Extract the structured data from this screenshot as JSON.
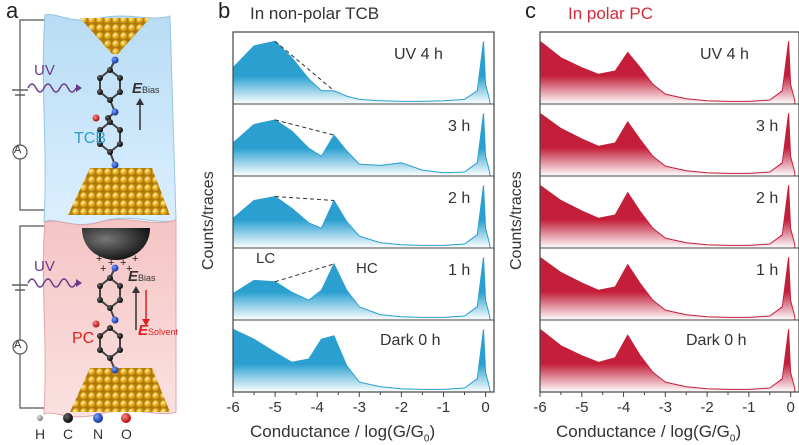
{
  "panels": {
    "a": {
      "letter": "a",
      "top": {
        "light": "UV",
        "solvent": "TCB",
        "field": "E",
        "field_sub": "Bias",
        "meter": "A"
      },
      "bottom": {
        "light": "UV",
        "solvent": "PC",
        "field": "E",
        "field_sub": "Bias",
        "field2": "E",
        "field2_sub": "Solvent",
        "meter": "A"
      },
      "legend": [
        "H",
        "C",
        "N",
        "O"
      ]
    },
    "b": {
      "letter": "b",
      "title": "In non-polar TCB",
      "rows": [
        "UV  4 h",
        "3 h",
        "2 h",
        "1 h",
        "Dark  0 h"
      ],
      "annot_lc": "LC",
      "annot_hc": "HC"
    },
    "c": {
      "letter": "c",
      "title": "In polar PC",
      "rows": [
        "UV  4 h",
        "3 h",
        "2 h",
        "1 h",
        "Dark  0 h"
      ]
    }
  },
  "axes": {
    "ylabel": "Counts/traces",
    "xlabel": "Conductance / log(G/G",
    "xlabel_sub": "0",
    "xlabel_end": ")",
    "xticks": [
      "-6",
      "-5",
      "-4",
      "-3",
      "-2",
      "-1",
      "0"
    ]
  },
  "colors": {
    "tcb": "#2a9fd0",
    "pc": "#c41e3a",
    "gold": "#e0a818",
    "pc_title": "#d42a3a"
  },
  "chart_data": [
    {
      "type": "area",
      "title": "In non-polar TCB",
      "xlabel": "Conductance / log(G/G0)",
      "ylabel": "Counts/traces",
      "xlim": [
        -6,
        0.2
      ],
      "series": [
        {
          "name": "UV  4 h",
          "x": [
            -6,
            -5.5,
            -5.0,
            -4.6,
            -4.2,
            -3.9,
            -3.6,
            -3.3,
            -3.0,
            -2.5,
            -2.0,
            -1.5,
            -1.0,
            -0.5,
            -0.2,
            -0.05,
            0,
            0.1
          ],
          "y": [
            0.55,
            0.88,
            0.95,
            0.7,
            0.38,
            0.2,
            0.2,
            0.12,
            0.07,
            0.05,
            0.04,
            0.04,
            0.05,
            0.07,
            0.2,
            0.95,
            0.3,
            0.05
          ]
        },
        {
          "name": "3 h",
          "x": [
            -6,
            -5.5,
            -5.0,
            -4.6,
            -4.2,
            -3.9,
            -3.6,
            -3.3,
            -3.0,
            -2.5,
            -2.0,
            -1.5,
            -1.0,
            -0.5,
            -0.2,
            -0.05,
            0,
            0.1
          ],
          "y": [
            0.5,
            0.78,
            0.85,
            0.68,
            0.42,
            0.3,
            0.62,
            0.38,
            0.18,
            0.16,
            0.2,
            0.09,
            0.05,
            0.06,
            0.2,
            0.95,
            0.3,
            0.05
          ]
        },
        {
          "name": "2 h",
          "x": [
            -6,
            -5.5,
            -5.0,
            -4.6,
            -4.2,
            -3.9,
            -3.6,
            -3.3,
            -3.0,
            -2.5,
            -2.0,
            -1.5,
            -1.0,
            -0.5,
            -0.2,
            -0.05,
            0,
            0.1
          ],
          "y": [
            0.45,
            0.72,
            0.78,
            0.6,
            0.38,
            0.3,
            0.72,
            0.4,
            0.18,
            0.08,
            0.05,
            0.04,
            0.04,
            0.06,
            0.2,
            0.95,
            0.3,
            0.05
          ]
        },
        {
          "name": "1 h",
          "x": [
            -6,
            -5.5,
            -5.0,
            -4.6,
            -4.2,
            -3.9,
            -3.6,
            -3.3,
            -3.0,
            -2.5,
            -2.0,
            -1.5,
            -1.0,
            -0.5,
            -0.2,
            -0.05,
            0,
            0.1
          ],
          "y": [
            0.4,
            0.6,
            0.58,
            0.42,
            0.3,
            0.45,
            0.85,
            0.45,
            0.2,
            0.08,
            0.05,
            0.04,
            0.04,
            0.06,
            0.2,
            0.95,
            0.3,
            0.05
          ]
        },
        {
          "name": "Dark  0 h",
          "x": [
            -6,
            -5.5,
            -5.0,
            -4.6,
            -4.2,
            -3.9,
            -3.6,
            -3.3,
            -3.0,
            -2.5,
            -2.0,
            -1.5,
            -1.0,
            -0.5,
            -0.2,
            -0.05,
            0,
            0.1
          ],
          "y": [
            0.95,
            0.8,
            0.6,
            0.45,
            0.5,
            0.8,
            0.85,
            0.4,
            0.15,
            0.08,
            0.05,
            0.04,
            0.04,
            0.06,
            0.2,
            0.95,
            0.3,
            0.05
          ]
        }
      ]
    },
    {
      "type": "area",
      "title": "In polar PC",
      "xlabel": "Conductance / log(G/G0)",
      "ylabel": "Counts/traces",
      "xlim": [
        -6,
        0.2
      ],
      "series": [
        {
          "name": "UV  4 h",
          "x": [
            -6,
            -5.5,
            -5.0,
            -4.6,
            -4.2,
            -3.9,
            -3.6,
            -3.3,
            -3.0,
            -2.5,
            -2.0,
            -1.5,
            -1.0,
            -0.5,
            -0.2,
            -0.05,
            0,
            0.1
          ],
          "y": [
            0.95,
            0.7,
            0.55,
            0.45,
            0.5,
            0.78,
            0.55,
            0.3,
            0.15,
            0.08,
            0.05,
            0.04,
            0.04,
            0.06,
            0.2,
            0.95,
            0.3,
            0.05
          ]
        },
        {
          "name": "3 h",
          "x": [
            -6,
            -5.5,
            -5.0,
            -4.6,
            -4.2,
            -3.9,
            -3.6,
            -3.3,
            -3.0,
            -2.5,
            -2.0,
            -1.5,
            -1.0,
            -0.5,
            -0.2,
            -0.05,
            0,
            0.1
          ],
          "y": [
            0.95,
            0.72,
            0.56,
            0.45,
            0.5,
            0.82,
            0.55,
            0.3,
            0.15,
            0.08,
            0.05,
            0.04,
            0.04,
            0.06,
            0.2,
            0.95,
            0.3,
            0.05
          ]
        },
        {
          "name": "2 h",
          "x": [
            -6,
            -5.5,
            -5.0,
            -4.6,
            -4.2,
            -3.9,
            -3.6,
            -3.3,
            -3.0,
            -2.5,
            -2.0,
            -1.5,
            -1.0,
            -0.5,
            -0.2,
            -0.05,
            0,
            0.1
          ],
          "y": [
            0.95,
            0.72,
            0.56,
            0.45,
            0.5,
            0.84,
            0.55,
            0.3,
            0.15,
            0.08,
            0.05,
            0.04,
            0.04,
            0.06,
            0.2,
            0.95,
            0.3,
            0.05
          ]
        },
        {
          "name": "1 h",
          "x": [
            -6,
            -5.5,
            -5.0,
            -4.6,
            -4.2,
            -3.9,
            -3.6,
            -3.3,
            -3.0,
            -2.5,
            -2.0,
            -1.5,
            -1.0,
            -0.5,
            -0.2,
            -0.05,
            0,
            0.1
          ],
          "y": [
            0.95,
            0.72,
            0.56,
            0.45,
            0.5,
            0.84,
            0.55,
            0.3,
            0.15,
            0.08,
            0.05,
            0.04,
            0.04,
            0.06,
            0.2,
            0.95,
            0.3,
            0.05
          ]
        },
        {
          "name": "Dark  0 h",
          "x": [
            -6,
            -5.5,
            -5.0,
            -4.6,
            -4.2,
            -3.9,
            -3.6,
            -3.3,
            -3.0,
            -2.5,
            -2.0,
            -1.5,
            -1.0,
            -0.5,
            -0.2,
            -0.05,
            0,
            0.1
          ],
          "y": [
            0.95,
            0.7,
            0.55,
            0.45,
            0.52,
            0.86,
            0.55,
            0.3,
            0.15,
            0.08,
            0.05,
            0.04,
            0.04,
            0.06,
            0.2,
            0.95,
            0.3,
            0.05
          ]
        }
      ]
    }
  ]
}
